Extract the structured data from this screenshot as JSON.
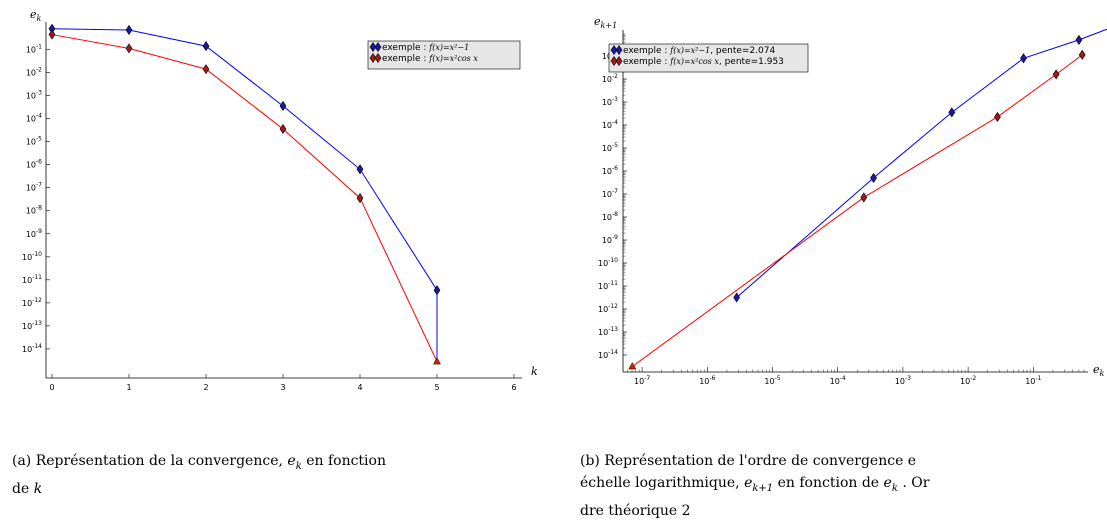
{
  "chart_data": [
    {
      "id": "a",
      "type": "line",
      "xlabel_main": "k",
      "ylabel_main": "e",
      "ylabel_sub": "k",
      "xlim": [
        0,
        6
      ],
      "ylim_exp": [
        -14.6,
        0.0
      ],
      "x_ticks": [
        "0",
        "1",
        "2",
        "3",
        "4",
        "5",
        "6"
      ],
      "y_tick_exponents": [
        "-1",
        "-2",
        "-3",
        "-4",
        "-5",
        "-6",
        "-7",
        "-8",
        "-9",
        "-10",
        "-11",
        "-12",
        "-13",
        "-14"
      ],
      "legend": [
        {
          "prefix": "exemple : ",
          "math": "f(x)=x²−1"
        },
        {
          "prefix": "exemple : ",
          "math": "f(x)=x²cos x"
        }
      ],
      "series": [
        {
          "color": "#0000ff",
          "x": [
            0,
            1,
            2,
            3,
            4,
            5,
            5
          ],
          "y_exp": [
            -0.1,
            -0.15,
            -0.85,
            -3.45,
            -6.2,
            -11.45,
            -14.55
          ]
        },
        {
          "color": "#ff0000",
          "x": [
            0,
            1,
            2,
            3,
            4,
            5
          ],
          "y_exp": [
            -0.35,
            -0.95,
            -1.85,
            -4.45,
            -7.45,
            -14.55
          ]
        }
      ]
    },
    {
      "id": "b",
      "type": "line",
      "xlabel_main": "e",
      "xlabel_sub": "k",
      "ylabel_main": "e",
      "ylabel_sub": "k+1",
      "xlim_exp": [
        -7.25,
        0.4
      ],
      "ylim_exp": [
        -14.6,
        0.45
      ],
      "x_tick_exponents": [
        "-7",
        "-6",
        "-5",
        "-4",
        "-3",
        "-2",
        "-1"
      ],
      "y_tick_exponents": [
        "-1",
        "-2",
        "-3",
        "-4",
        "-5",
        "-6",
        "-7",
        "-8",
        "-9",
        "-10",
        "-11",
        "-12",
        "-13",
        "-14"
      ],
      "legend": [
        {
          "prefix": "exemple : ",
          "math": "f(x)=x²−1",
          "suffix": ", pente=2.074"
        },
        {
          "prefix": "exemple : ",
          "math": "f(x)=x²cos x",
          "suffix": ", pente=1.953"
        }
      ],
      "series": [
        {
          "color": "#0000ff",
          "x_exp": [
            -5.55,
            -3.45,
            -2.25,
            -1.15,
            -0.3
          ],
          "y_exp": [
            -11.5,
            -6.3,
            -3.45,
            -1.1,
            -0.3
          ]
        },
        {
          "color": "#ff0000",
          "x_exp": [
            -7.15,
            -3.6,
            -1.55,
            -0.65,
            -0.25
          ],
          "y_exp": [
            -14.5,
            -7.15,
            -3.65,
            -1.8,
            -0.95
          ]
        }
      ],
      "extra_marker": {
        "color": "#0000ff",
        "x_exp": 0.3,
        "y_exp": 0.35
      }
    }
  ],
  "captions": {
    "a_line1": "(a) Représentation de la convergence, ",
    "a_mid": " en fonction",
    "a_line2": "de ",
    "a_var_main": "e",
    "a_var_sub": "k",
    "a_k": "k",
    "b_line1": "(b)  Représentation  de  l'ordre  de  convergence  e",
    "b_line2a": "échelle logarithmique, ",
    "b_line2b": " en fonction de ",
    "b_line2c": " . Or",
    "b_line3": "dre théorique 2",
    "b_var1_main": "e",
    "b_var1_sub": "k+1",
    "b_var2_main": "e",
    "b_var2_sub": "k"
  }
}
